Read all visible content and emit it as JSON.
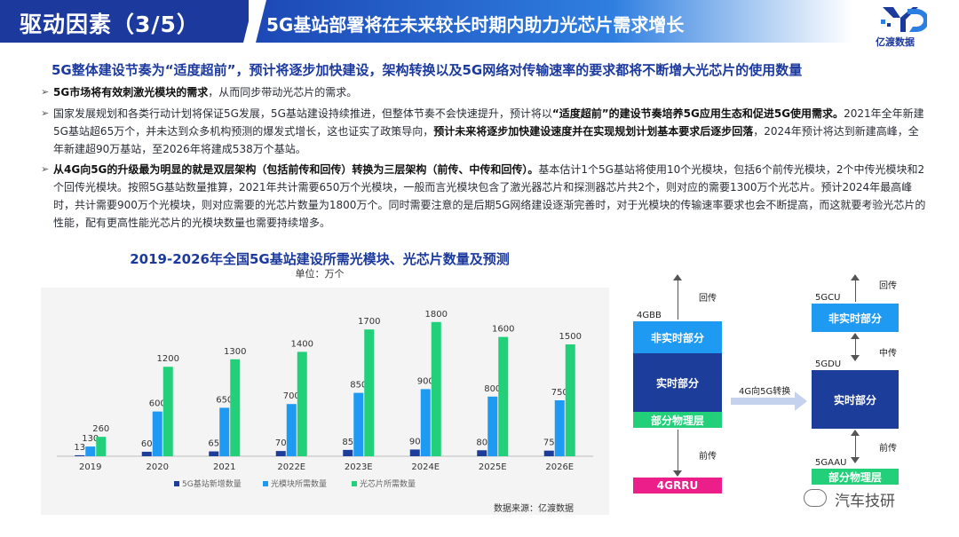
{
  "header": {
    "section": "驱动因素（3/5）",
    "title": "5G基站部署将在未来较长时期内助力光芯片需求增长",
    "brand_text": "亿渡数据",
    "brand_color": "#1c3a9e"
  },
  "lead": "5G整体建设节奏为“适度超前”，预计将逐步加快建设，架构转换以及5G网络对传输速率的要求都将不断增大光芯片的使用数量",
  "bullets": {
    "b1": {
      "bold": "5G市场将有效刺激光模块的需求",
      "rest": "，从而同步带动光芯片的需求。"
    },
    "b2": {
      "p1": "国家发展规划和各类行动计划将保证5G发展，5G基站建设持续推进，但整体节奏不会快速提升，预计将以",
      "bold1": "“适度超前”的建设节奏培养5G应用生态和促进5G使用需求。",
      "p2": "2021年全年新建5G基站超65万个，并未达到众多机构预测的爆发式增长，这也证实了政策导向，",
      "bold2": "预计未来将逐步加快建设速度并在实现规划计划基本要求后逐步回落",
      "p3": "，2024年预计将达到新建高峰，全年新建超90万基站，至2026年将建成538万个基站。"
    },
    "b3": {
      "bold": "从4G向5G的升级最为明显的就是双层架构（包括前传和回传）转换为三层架构（前传、中传和回传）。",
      "rest": "基本估计1个5G基站将使用10个光模块，包括6个前传光模块，2个中传光模块和2个回传光模块。按照5G基站数量推算，2021年共计需要650万个光模块，一般而言光模块包含了激光器芯片和探测器芯片共2个，则对应的需要1300万个光芯片。预计2024年最高峰时，共计需要900万个光模块，则对应需要的光芯片数量为1800万个。同时需要注意的是后期5G网络建设逐渐完善时，对于光模块的传输速率要求也会不断提高，而这就要考验光芯片的性能，配有更高性能光芯片的光模块数量也需要持续增多。"
    }
  },
  "chart_data": {
    "type": "bar",
    "title": "2019-2026年全国5G基站建设所需光模块、光芯片数量及预测",
    "unit": "单位：万个",
    "categories": [
      "2019",
      "2020",
      "2021",
      "2022E",
      "2023E",
      "2024E",
      "2025E",
      "2026E"
    ],
    "series": [
      {
        "name": "5G基站新增数量",
        "values": [
          13,
          60,
          65,
          70,
          85,
          90,
          80,
          75
        ],
        "color": "#1d3d9a"
      },
      {
        "name": "光模块所需数量",
        "values": [
          130,
          600,
          650,
          700,
          850,
          900,
          800,
          750
        ],
        "color": "#1e9af3"
      },
      {
        "name": "光芯片所需数量",
        "values": [
          260,
          1200,
          1300,
          1400,
          1700,
          1800,
          1600,
          1500
        ],
        "color": "#22d07a"
      }
    ],
    "ylim": [
      0,
      2000
    ],
    "legend": "bottom",
    "grid": false,
    "source": "数据来源：亿渡数据"
  },
  "diagram": {
    "left": {
      "label_top": "回传",
      "node": "4GBB",
      "block1": "非实时部分",
      "block2": "实时部分",
      "block3": "部分物理层",
      "label_bottom": "前传",
      "bottom_node": "4GRRU"
    },
    "transition": "4G向5G转换",
    "right": {
      "label_top": "回传",
      "node1": "5GCU",
      "block1": "非实时部分",
      "label_mid": "中传",
      "node2": "5GDU",
      "block2": "实时部分",
      "label_bottom": "前传",
      "node3": "5GAAU",
      "block3": "部分物理层"
    }
  },
  "watermark": "汽车技研"
}
